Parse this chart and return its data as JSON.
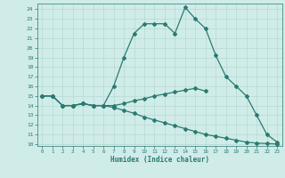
{
  "background_color": "#d0ece8",
  "grid_color": "#b0d4d0",
  "line_color": "#2a7a72",
  "x_label": "Humidex (Indice chaleur)",
  "xlim": [
    -0.5,
    23.5
  ],
  "ylim": [
    9.8,
    24.6
  ],
  "yticks": [
    10,
    11,
    12,
    13,
    14,
    15,
    16,
    17,
    18,
    19,
    20,
    21,
    22,
    23,
    24
  ],
  "xticks": [
    0,
    1,
    2,
    3,
    4,
    5,
    6,
    7,
    8,
    9,
    10,
    11,
    12,
    13,
    14,
    15,
    16,
    17,
    18,
    19,
    20,
    21,
    22,
    23
  ],
  "line1_y": [
    15.0,
    15.0,
    14.0,
    14.0,
    14.2,
    14.0,
    14.0,
    16.0,
    19.0,
    21.5,
    22.5,
    22.5,
    22.5,
    21.5,
    24.2,
    23.0,
    22.0,
    19.2,
    17.0,
    16.0,
    15.0,
    13.0,
    11.0,
    10.2
  ],
  "line2_y": [
    15.0,
    15.0,
    14.0,
    14.0,
    14.2,
    14.0,
    14.0,
    14.0,
    14.2,
    14.5,
    14.7,
    15.0,
    15.2,
    15.4,
    15.6,
    15.8,
    15.5,
    null,
    null,
    null,
    null,
    null,
    null,
    null
  ],
  "line3_y": [
    15.0,
    15.0,
    14.0,
    14.0,
    14.2,
    14.0,
    14.0,
    13.8,
    13.5,
    13.2,
    12.8,
    12.5,
    12.2,
    11.9,
    11.6,
    11.3,
    11.0,
    10.8,
    10.6,
    10.4,
    10.2,
    10.1,
    10.05,
    10.0
  ],
  "marker_size": 2.0,
  "line_width": 0.9
}
